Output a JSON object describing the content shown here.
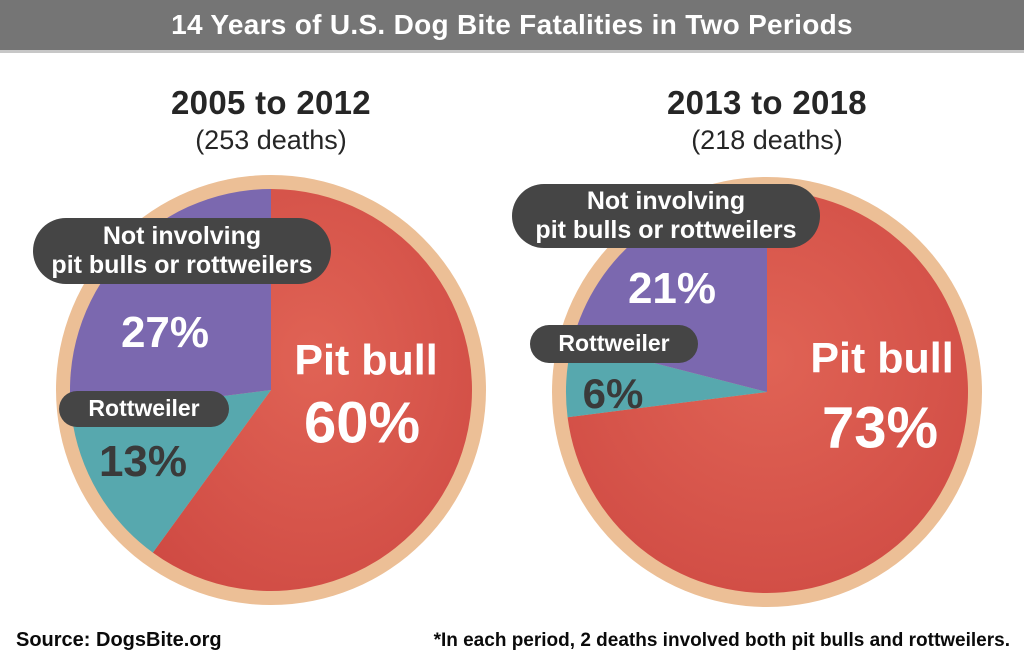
{
  "title": "14 Years of U.S. Dog Bite Fatalities in Two Periods",
  "footer": {
    "source": "Source: DogsBite.org",
    "note": "*In each period, 2 deaths involved both pit bulls and rottweilers."
  },
  "colors": {
    "title_bar": "#757575",
    "title_text": "#ffffff",
    "pill": "#454545",
    "ring": "#ECBF96",
    "pct_light": "#ffffff",
    "pct_dark": "#3a3a3a",
    "pitbull_red": "#D8544C",
    "rottweiler_teal": "#57A8AE",
    "other_purple": "#7B68AF"
  },
  "chart_data": [
    {
      "type": "pie",
      "title": "2005 to 2012",
      "subtitle": "(253 deaths)",
      "total_deaths": 253,
      "slices": [
        {
          "key": "pit-bull",
          "label": "Pit bull",
          "pct": 60,
          "pct_label": "60%",
          "color": "#D8544C",
          "gradient": [
            "#E06355",
            "#CF4A43"
          ]
        },
        {
          "key": "rottweiler",
          "label": "Rottweiler",
          "pct": 13,
          "pct_label": "13%",
          "color": "#57A8AE"
        },
        {
          "key": "other",
          "label": "Not involving pit bulls or rottweilers",
          "label_line1": "Not involving",
          "label_line2": "pit bulls or rottweilers",
          "pct": 27,
          "pct_label": "27%",
          "color": "#7B68AF"
        }
      ]
    },
    {
      "type": "pie",
      "title": "2013 to 2018",
      "subtitle": "(218 deaths)",
      "total_deaths": 218,
      "slices": [
        {
          "key": "pit-bull",
          "label": "Pit bull",
          "pct": 73,
          "pct_label": "73%",
          "color": "#D8544C",
          "gradient": [
            "#E06355",
            "#CF4A43"
          ]
        },
        {
          "key": "rottweiler",
          "label": "Rottweiler",
          "pct": 6,
          "pct_label": "6%",
          "color": "#57A8AE"
        },
        {
          "key": "other",
          "label": "Not involving pit bulls or rottweilers",
          "label_line1": "Not involving",
          "label_line2": "pit bulls or rottweilers",
          "pct": 21,
          "pct_label": "21%",
          "color": "#7B68AF"
        }
      ]
    }
  ]
}
